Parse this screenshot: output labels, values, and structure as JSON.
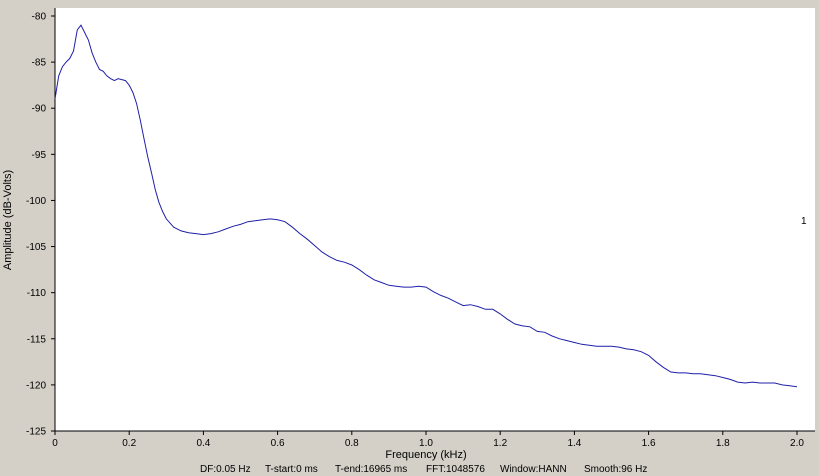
{
  "chart_data": {
    "type": "line",
    "xlabel": "Frequency (kHz)",
    "ylabel": "Amplitude (dB-Volts)",
    "xlim": [
      0,
      2.0
    ],
    "ylim": [
      -125,
      -80
    ],
    "x_ticks": [
      "0",
      "0.2",
      "0.4",
      "0.6",
      "0.8",
      "1.0",
      "1.2",
      "1.4",
      "1.6",
      "1.8",
      "2.0"
    ],
    "y_ticks": [
      "-80",
      "-85",
      "-90",
      "-95",
      "-100",
      "-105",
      "-110",
      "-115",
      "-120",
      "-125"
    ],
    "grid": false,
    "line_color": "#1f1fa8",
    "series": [
      {
        "label": "1",
        "points": [
          [
            0.0,
            -89.0
          ],
          [
            0.01,
            -86.5
          ],
          [
            0.02,
            -85.5
          ],
          [
            0.03,
            -85.0
          ],
          [
            0.04,
            -84.6
          ],
          [
            0.05,
            -83.8
          ],
          [
            0.06,
            -81.5
          ],
          [
            0.07,
            -81.0
          ],
          [
            0.08,
            -81.8
          ],
          [
            0.09,
            -82.6
          ],
          [
            0.1,
            -84.0
          ],
          [
            0.11,
            -85.0
          ],
          [
            0.12,
            -85.8
          ],
          [
            0.13,
            -86.0
          ],
          [
            0.14,
            -86.5
          ],
          [
            0.15,
            -86.8
          ],
          [
            0.16,
            -87.0
          ],
          [
            0.17,
            -86.8
          ],
          [
            0.18,
            -86.9
          ],
          [
            0.19,
            -87.0
          ],
          [
            0.2,
            -87.5
          ],
          [
            0.21,
            -88.3
          ],
          [
            0.22,
            -89.5
          ],
          [
            0.23,
            -91.3
          ],
          [
            0.24,
            -93.3
          ],
          [
            0.25,
            -95.3
          ],
          [
            0.26,
            -97.0
          ],
          [
            0.27,
            -98.8
          ],
          [
            0.28,
            -100.2
          ],
          [
            0.29,
            -101.2
          ],
          [
            0.3,
            -102.0
          ],
          [
            0.32,
            -102.9
          ],
          [
            0.34,
            -103.3
          ],
          [
            0.36,
            -103.5
          ],
          [
            0.38,
            -103.6
          ],
          [
            0.4,
            -103.7
          ],
          [
            0.42,
            -103.6
          ],
          [
            0.44,
            -103.4
          ],
          [
            0.46,
            -103.1
          ],
          [
            0.48,
            -102.8
          ],
          [
            0.5,
            -102.6
          ],
          [
            0.52,
            -102.3
          ],
          [
            0.54,
            -102.2
          ],
          [
            0.56,
            -102.1
          ],
          [
            0.58,
            -102.0
          ],
          [
            0.6,
            -102.1
          ],
          [
            0.62,
            -102.3
          ],
          [
            0.64,
            -102.9
          ],
          [
            0.66,
            -103.6
          ],
          [
            0.68,
            -104.2
          ],
          [
            0.7,
            -104.9
          ],
          [
            0.72,
            -105.6
          ],
          [
            0.74,
            -106.1
          ],
          [
            0.76,
            -106.5
          ],
          [
            0.78,
            -106.7
          ],
          [
            0.8,
            -107.0
          ],
          [
            0.82,
            -107.5
          ],
          [
            0.84,
            -108.1
          ],
          [
            0.86,
            -108.6
          ],
          [
            0.88,
            -108.9
          ],
          [
            0.9,
            -109.2
          ],
          [
            0.92,
            -109.3
          ],
          [
            0.94,
            -109.4
          ],
          [
            0.96,
            -109.4
          ],
          [
            0.98,
            -109.3
          ],
          [
            1.0,
            -109.4
          ],
          [
            1.02,
            -109.9
          ],
          [
            1.04,
            -110.3
          ],
          [
            1.06,
            -110.6
          ],
          [
            1.08,
            -111.0
          ],
          [
            1.1,
            -111.4
          ],
          [
            1.12,
            -111.3
          ],
          [
            1.14,
            -111.5
          ],
          [
            1.16,
            -111.8
          ],
          [
            1.18,
            -111.8
          ],
          [
            1.2,
            -112.3
          ],
          [
            1.22,
            -112.9
          ],
          [
            1.24,
            -113.4
          ],
          [
            1.26,
            -113.6
          ],
          [
            1.28,
            -113.7
          ],
          [
            1.3,
            -114.2
          ],
          [
            1.32,
            -114.3
          ],
          [
            1.34,
            -114.7
          ],
          [
            1.36,
            -115.0
          ],
          [
            1.38,
            -115.2
          ],
          [
            1.4,
            -115.4
          ],
          [
            1.42,
            -115.6
          ],
          [
            1.44,
            -115.7
          ],
          [
            1.46,
            -115.8
          ],
          [
            1.48,
            -115.8
          ],
          [
            1.5,
            -115.8
          ],
          [
            1.52,
            -115.9
          ],
          [
            1.54,
            -116.1
          ],
          [
            1.56,
            -116.2
          ],
          [
            1.58,
            -116.4
          ],
          [
            1.6,
            -116.8
          ],
          [
            1.62,
            -117.5
          ],
          [
            1.64,
            -118.1
          ],
          [
            1.66,
            -118.6
          ],
          [
            1.68,
            -118.7
          ],
          [
            1.7,
            -118.7
          ],
          [
            1.72,
            -118.8
          ],
          [
            1.74,
            -118.8
          ],
          [
            1.76,
            -118.9
          ],
          [
            1.78,
            -119.0
          ],
          [
            1.8,
            -119.2
          ],
          [
            1.82,
            -119.4
          ],
          [
            1.84,
            -119.7
          ],
          [
            1.86,
            -119.8
          ],
          [
            1.88,
            -119.7
          ],
          [
            1.9,
            -119.8
          ],
          [
            1.92,
            -119.8
          ],
          [
            1.94,
            -119.8
          ],
          [
            1.96,
            -120.0
          ],
          [
            1.98,
            -120.1
          ],
          [
            2.0,
            -120.2
          ]
        ]
      }
    ]
  },
  "footer": {
    "df": "DF:0.05 Hz",
    "t_start": "T-start:0 ms",
    "t_end": "T-end:16965 ms",
    "fft": "FFT:1048576",
    "window": "Window:HANN",
    "smooth": "Smooth:96 Hz"
  }
}
